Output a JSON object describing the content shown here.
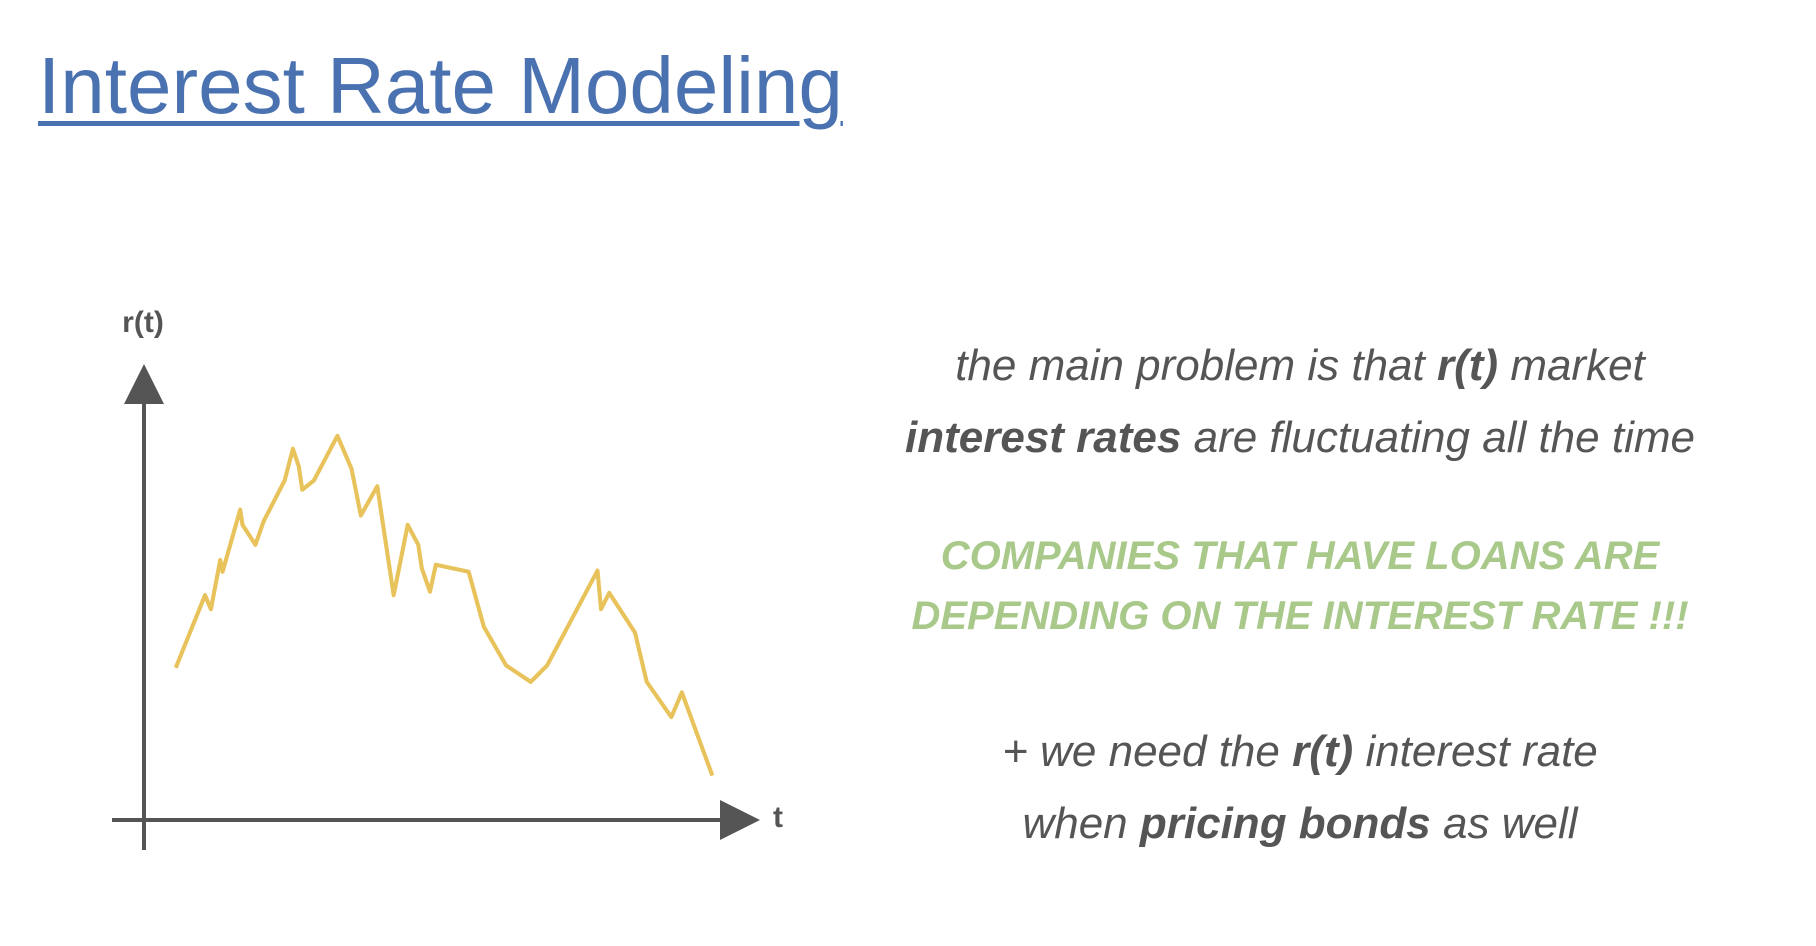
{
  "title": "Interest Rate Modeling",
  "chart": {
    "y_axis_label": "r(t)",
    "x_axis_label": "t"
  },
  "paragraph_1": {
    "line_1": [
      "the main problem is that",
      "r(t)",
      "market"
    ],
    "line_2": [
      "interest rates",
      "are fluctuating all the time"
    ]
  },
  "highlight": {
    "lines": [
      "COMPANIES THAT HAVE LOANS ARE",
      "DEPENDING ON THE INTEREST RATE !!!"
    ]
  },
  "paragraph_2": {
    "line_1": [
      "+ we need the",
      "r(t)",
      "interest rate"
    ],
    "line_2": [
      "when",
      "pricing bonds",
      "as well"
    ]
  }
}
